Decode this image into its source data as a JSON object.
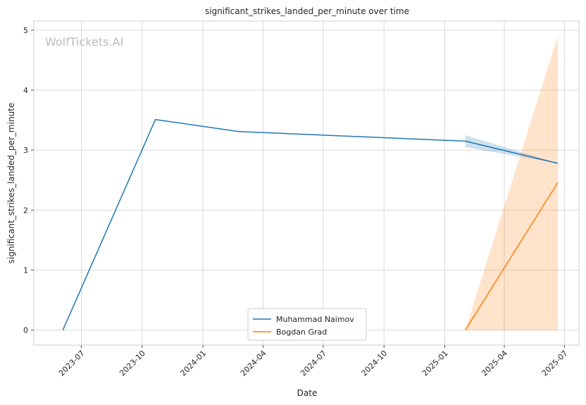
{
  "chart_data": {
    "type": "line",
    "title": "significant_strikes_landed_per_minute over time",
    "xlabel": "Date",
    "ylabel": "significant_strikes_landed_per_minute",
    "watermark": "WolfTickets.AI",
    "xlim": [
      "2023-04-20",
      "2025-07-23"
    ],
    "ylim": [
      -0.25,
      5.15
    ],
    "x_ticks": [
      "2023-07",
      "2023-10",
      "2024-01",
      "2024-04",
      "2024-07",
      "2024-10",
      "2025-01",
      "2025-04",
      "2025-07"
    ],
    "y_ticks": [
      0,
      1,
      2,
      3,
      4,
      5
    ],
    "grid": true,
    "legend_position": "bottom-center",
    "series": [
      {
        "name": "Muhammad Naimov",
        "color": "#1f77b4",
        "points": [
          {
            "x": "2023-06-03",
            "y": 0.0
          },
          {
            "x": "2023-10-21",
            "y": 3.51
          },
          {
            "x": "2024-02-24",
            "y": 3.31
          },
          {
            "x": "2025-02-01",
            "y": 3.15
          },
          {
            "x": "2025-06-21",
            "y": 2.78
          }
        ],
        "band": [
          {
            "x": "2025-02-01",
            "low": 3.05,
            "high": 3.25
          },
          {
            "x": "2025-06-21",
            "low": 2.78,
            "high": 2.78
          }
        ]
      },
      {
        "name": "Bogdan Grad",
        "color": "#ff7f0e",
        "points": [
          {
            "x": "2025-02-01",
            "y": 0.0
          },
          {
            "x": "2025-06-21",
            "y": 2.46
          }
        ],
        "band": [
          {
            "x": "2025-02-01",
            "low": 0.0,
            "high": 0.0
          },
          {
            "x": "2025-06-21",
            "low": 0.0,
            "high": 4.9
          }
        ]
      }
    ]
  }
}
